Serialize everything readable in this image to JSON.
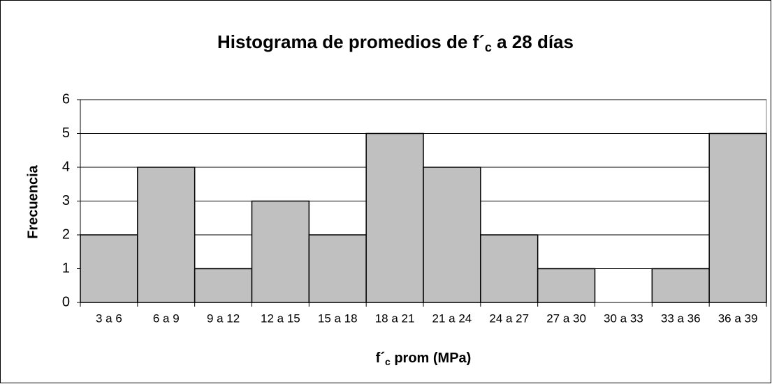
{
  "chart_data": {
    "type": "bar",
    "title": [
      "Histograma de promedios de f´",
      "c",
      " a 28 días"
    ],
    "x_label": [
      "f´",
      "c",
      " prom (MPa)"
    ],
    "y_label": "Frecuencia",
    "categories": [
      "3 a 6",
      "6 a 9",
      "9 a 12",
      "12 a 15",
      "15 a 18",
      "18 a 21",
      "21 a 24",
      "24 a 27",
      "27 a 30",
      "30 a 33",
      "33 a 36",
      "36 a 39"
    ],
    "values": [
      2,
      4,
      1,
      3,
      2,
      5,
      4,
      2,
      1,
      0,
      1,
      5
    ],
    "color": "#c0c0c0",
    "ylim": [
      0,
      6
    ],
    "yticks": [
      0,
      1,
      2,
      3,
      4,
      5,
      6
    ],
    "grid": true
  }
}
